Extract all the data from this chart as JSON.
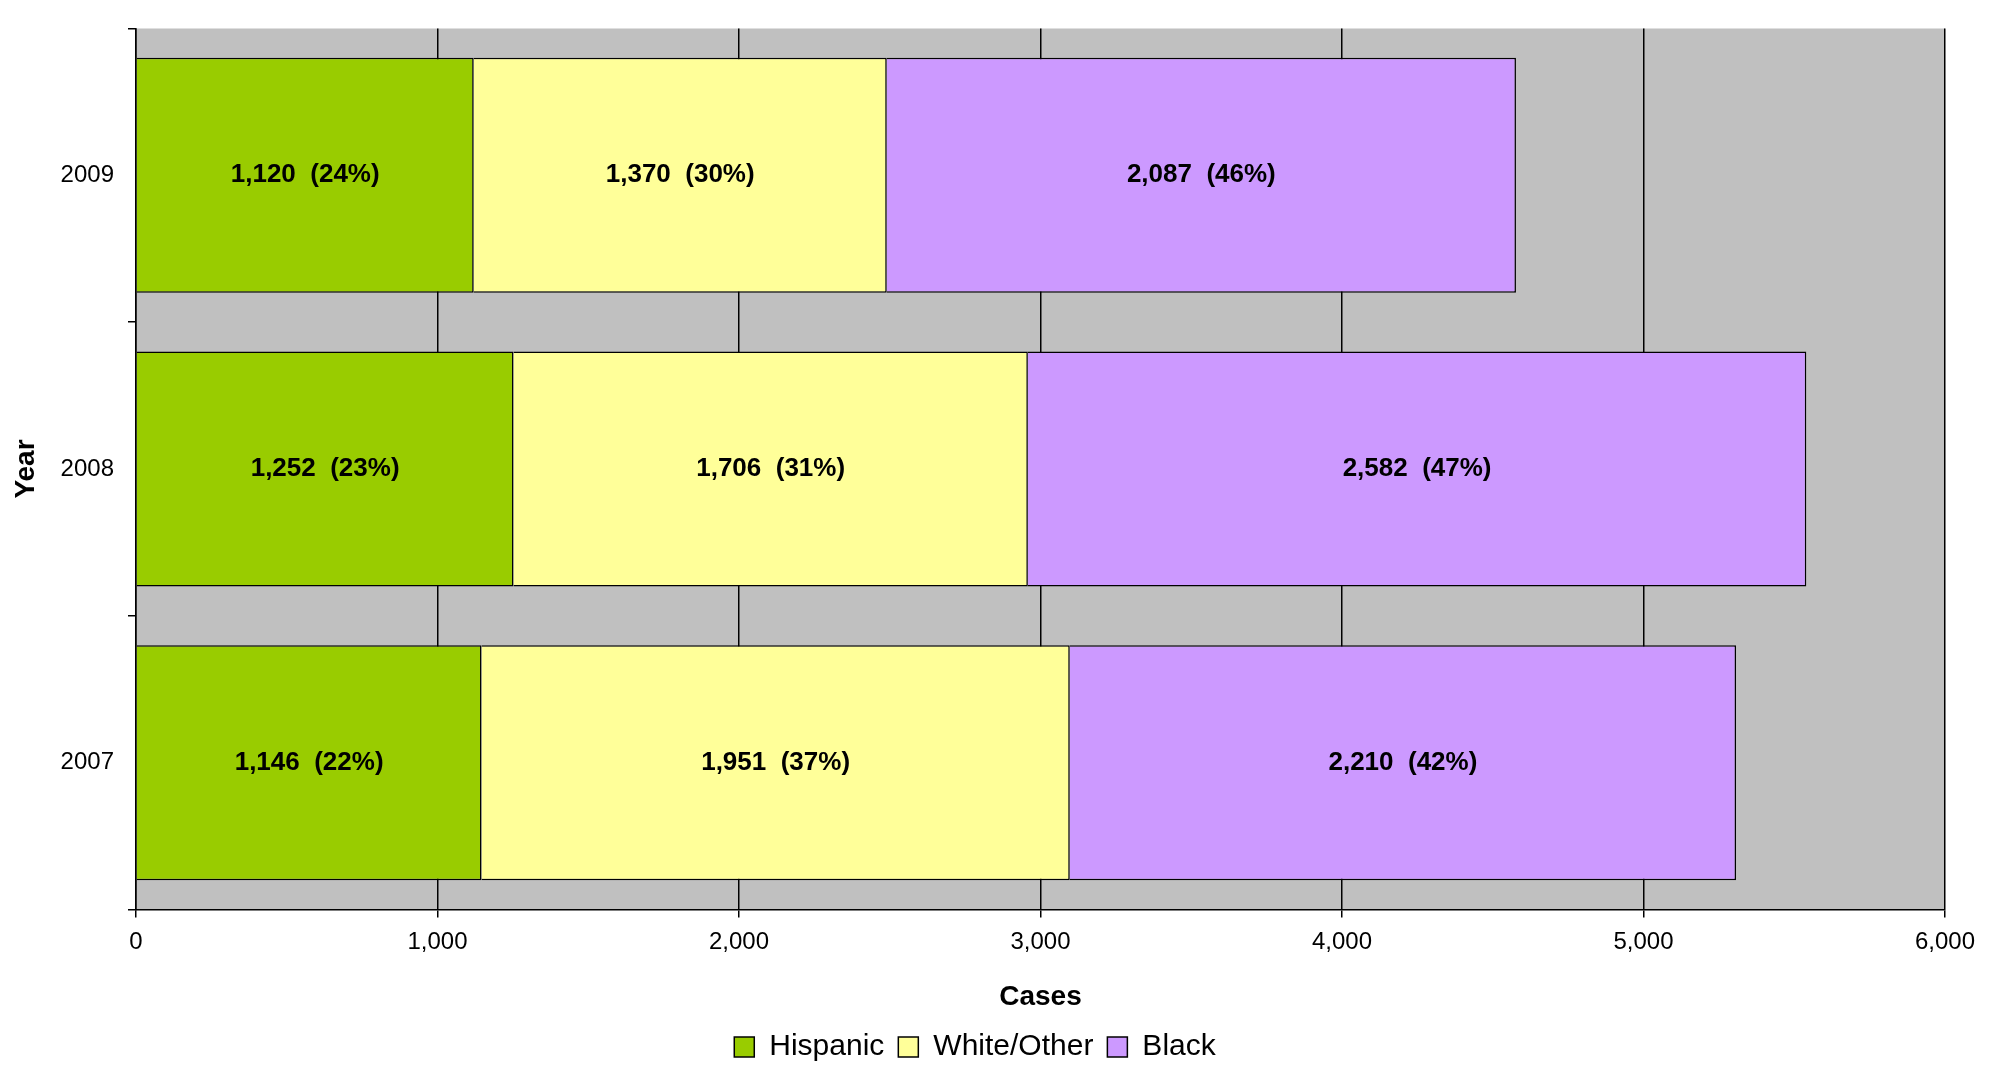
{
  "chart_data": {
    "type": "bar",
    "orientation": "horizontal",
    "stacked": true,
    "xlabel": "Cases",
    "ylabel": "Year",
    "categories": [
      "2009",
      "2008",
      "2007"
    ],
    "series": [
      {
        "name": "Hispanic",
        "color": "#99cc00",
        "values": [
          1120,
          1252,
          1146
        ],
        "value_labels": [
          "1,120  (24%)",
          "1,252  (23%)",
          "1,146  (22%)"
        ]
      },
      {
        "name": "White/Other",
        "color": "#ffff99",
        "values": [
          1370,
          1706,
          1951
        ],
        "value_labels": [
          "1,370  (30%)",
          "1,706  (31%)",
          "1,951  (37%)"
        ]
      },
      {
        "name": "Black",
        "color": "#cc99ff",
        "values": [
          2087,
          2582,
          2210
        ],
        "value_labels": [
          "2,087  (46%)",
          "2,582  (47%)",
          "2,210  (42%)"
        ]
      }
    ],
    "xlim": [
      0,
      6000
    ],
    "xticks": [
      {
        "value": 0,
        "label": "0"
      },
      {
        "value": 1000,
        "label": "1,000"
      },
      {
        "value": 2000,
        "label": "2,000"
      },
      {
        "value": 3000,
        "label": "3,000"
      },
      {
        "value": 4000,
        "label": "4,000"
      },
      {
        "value": 5000,
        "label": "5,000"
      },
      {
        "value": 6000,
        "label": "6,000"
      }
    ],
    "grid": "x",
    "legend": "bottom"
  }
}
